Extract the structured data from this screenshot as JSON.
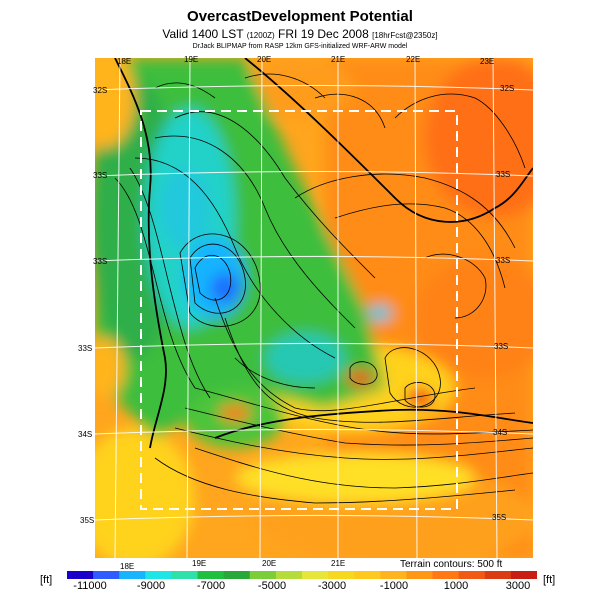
{
  "title": "OvercastDevelopment Potential",
  "subtitle_main": "Valid 1400 LST",
  "subtitle_mid": "(1200Z)",
  "subtitle_date": "FRI 19 Dec 2008",
  "subtitle_tail": "[18hrFcst@2350z]",
  "model_line": "DrJack BLIPMAP from RASP 12km GFS-initialized WRF-ARW model",
  "top_lon_labels": [
    "18E",
    "19E",
    "20E",
    "21E",
    "22E",
    "23E"
  ],
  "bottom_lon_labels": [
    "18E",
    "19E",
    "20E",
    "21E"
  ],
  "left_lat_labels": [
    "32S",
    "33S",
    "33S",
    "33S",
    "34S",
    "35S"
  ],
  "right_lat_labels": [
    "32S",
    "33S",
    "33S",
    "33S",
    "34S",
    "35S"
  ],
  "terrain_note": "Terrain contours: 500 ft",
  "colorbar": {
    "unit_left": "[ft]",
    "unit_right": "[ft]",
    "labels": [
      "-11000",
      "-9000",
      "-7000",
      "-5000",
      "-3000",
      "-1000",
      "1000",
      "3000"
    ],
    "colors": [
      "#1a00c8",
      "#2f5cff",
      "#19b4ff",
      "#1ee6e6",
      "#2fe0a8",
      "#1fbf3f",
      "#29a83a",
      "#7ccd3a",
      "#b4dc3a",
      "#e6e63a",
      "#f5d81f",
      "#ffc81e",
      "#ffb41e",
      "#ff9614",
      "#ff7814",
      "#f05a14",
      "#dc3c14",
      "#c81e14"
    ]
  }
}
